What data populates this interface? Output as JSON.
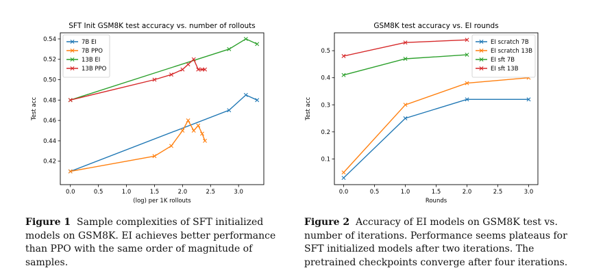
{
  "figures": [
    {
      "caption_label": "Figure 1",
      "caption_text": "Sample complexities of SFT initialized models on GSM8K. EI achieves better performance than PPO with the same order of magnitude of samples."
    },
    {
      "caption_label": "Figure 2",
      "caption_text": "Accuracy of EI models on GSM8K test vs. number of iterations. Performance seems plateaus for SFT initialized models after two iterations. The pretrained checkpoints converge after four iterations."
    }
  ],
  "chart_data": [
    {
      "type": "line",
      "title": "SFT Init GSM8K test accuracy vs. number of rollouts",
      "xlabel": "(log) per 1K rollouts",
      "ylabel": "Test acc",
      "xlim": [
        -0.18,
        3.45
      ],
      "ylim": [
        0.397,
        0.546
      ],
      "xticks": [
        0.0,
        0.5,
        1.0,
        1.5,
        2.0,
        2.5,
        3.0
      ],
      "xtick_labels": [
        "0.0",
        "0.5",
        "1.0",
        "1.5",
        "2.0",
        "2.5",
        "3.0"
      ],
      "yticks": [
        0.42,
        0.44,
        0.46,
        0.48,
        0.5,
        0.52,
        0.54
      ],
      "ytick_labels": [
        "0.42",
        "0.44",
        "0.46",
        "0.48",
        "0.50",
        "0.52",
        "0.54"
      ],
      "grid": false,
      "legend": "top-left",
      "marker": "x",
      "series": [
        {
          "name": "7B EI",
          "color": "#1f77b4",
          "x": [
            0.0,
            2.83,
            3.13,
            3.33
          ],
          "y": [
            0.41,
            0.47,
            0.485,
            0.48
          ]
        },
        {
          "name": "7B PPO",
          "color": "#ff7f0e",
          "x": [
            0.0,
            1.5,
            1.8,
            2.0,
            2.1,
            2.2,
            2.28,
            2.35,
            2.4
          ],
          "y": [
            0.41,
            0.425,
            0.435,
            0.45,
            0.46,
            0.45,
            0.455,
            0.447,
            0.44
          ]
        },
        {
          "name": "13B EI",
          "color": "#2ca02c",
          "x": [
            0.0,
            2.83,
            3.13,
            3.33
          ],
          "y": [
            0.48,
            0.53,
            0.54,
            0.535
          ]
        },
        {
          "name": "13B PPO",
          "color": "#d62728",
          "x": [
            0.0,
            1.5,
            1.8,
            2.0,
            2.1,
            2.2,
            2.28,
            2.35,
            2.4
          ],
          "y": [
            0.48,
            0.5,
            0.505,
            0.51,
            0.515,
            0.52,
            0.51,
            0.51,
            0.51
          ]
        }
      ]
    },
    {
      "type": "line",
      "title": "GSM8K test accuracy vs. EI rounds",
      "xlabel": "Rounds",
      "ylabel": "Test acc",
      "xlim": [
        -0.15,
        3.15
      ],
      "ylim": [
        0.005,
        0.566
      ],
      "xticks": [
        0.0,
        0.5,
        1.0,
        1.5,
        2.0,
        2.5,
        3.0
      ],
      "xtick_labels": [
        "0.0",
        "0.5",
        "1.0",
        "1.5",
        "2.0",
        "2.5",
        "3.0"
      ],
      "yticks": [
        0.1,
        0.2,
        0.3,
        0.4,
        0.5
      ],
      "ytick_labels": [
        "0.1",
        "0.2",
        "0.3",
        "0.4",
        "0.5"
      ],
      "grid": false,
      "legend": "top-right",
      "marker": "x",
      "series": [
        {
          "name": "EI scratch 7B",
          "color": "#1f77b4",
          "x": [
            0,
            1,
            2,
            3
          ],
          "y": [
            0.03,
            0.25,
            0.32,
            0.32
          ]
        },
        {
          "name": "EI scratch 13B",
          "color": "#ff7f0e",
          "x": [
            0,
            1,
            2,
            3
          ],
          "y": [
            0.05,
            0.3,
            0.38,
            0.4
          ]
        },
        {
          "name": "EI sft 7B",
          "color": "#2ca02c",
          "x": [
            0,
            1,
            2
          ],
          "y": [
            0.41,
            0.47,
            0.485
          ]
        },
        {
          "name": "EI sft 13B",
          "color": "#d62728",
          "x": [
            0,
            1,
            2
          ],
          "y": [
            0.48,
            0.53,
            0.54
          ]
        }
      ]
    }
  ]
}
